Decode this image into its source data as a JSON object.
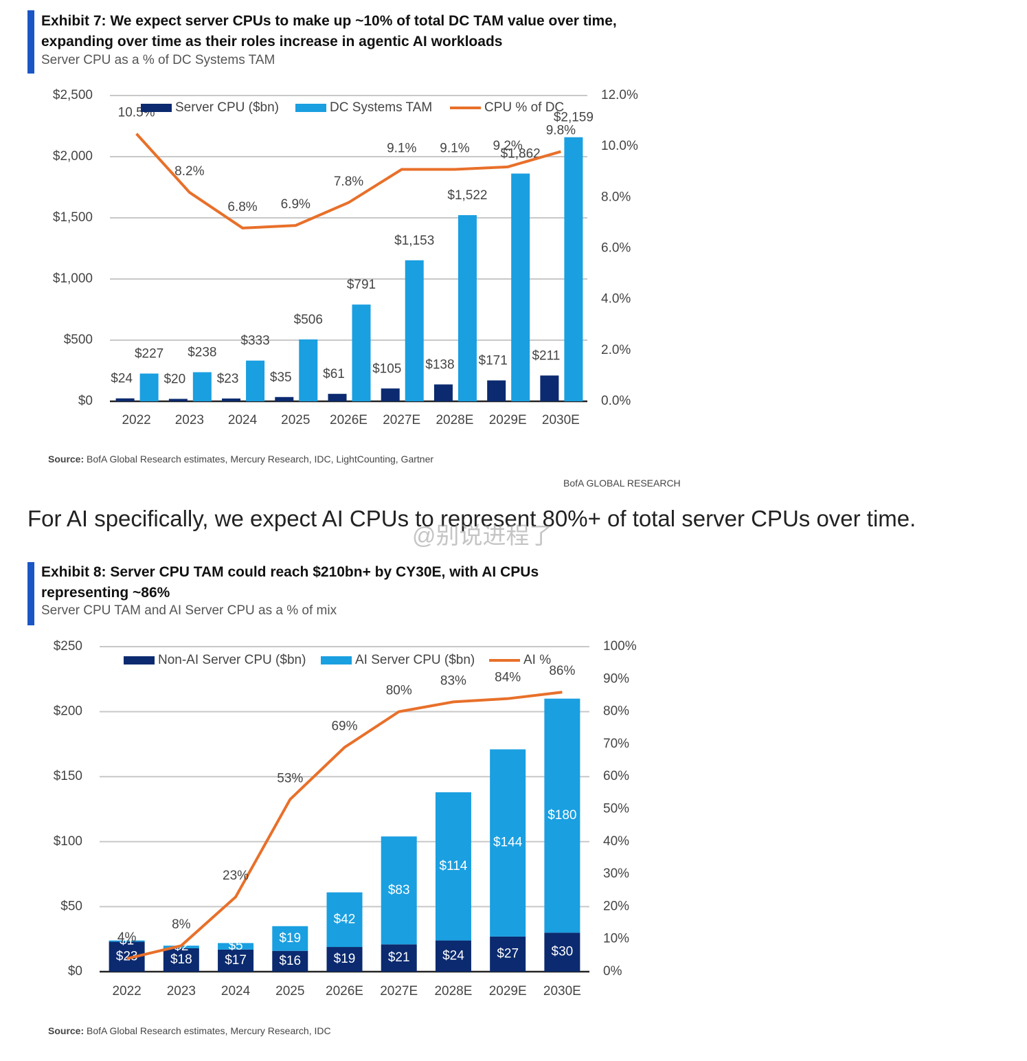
{
  "brand": "BofA GLOBAL RESEARCH",
  "text": "For AI specifically, we expect AI CPUs to represent 80%+ of total server CPUs over time.",
  "watermark": "@别说进程了",
  "chart_data": [
    {
      "type": "bar",
      "stacked": false,
      "title": "Exhibit 7: We expect server CPUs to make up ~10% of total DC TAM value over time, expanding over time as their roles increase in agentic AI workloads",
      "subtitle": "Server CPU as a % of DC Systems TAM",
      "source_label": "Source:",
      "source": "BofA Global Research estimates, Mercury Research, IDC, LightCounting, Gartner",
      "categories": [
        "2022",
        "2023",
        "2024",
        "2025",
        "2026E",
        "2027E",
        "2028E",
        "2029E",
        "2030E"
      ],
      "series": [
        {
          "name": "Server CPU ($bn)",
          "color": "#0b2a6f",
          "values": [
            24,
            20,
            23,
            35,
            61,
            105,
            138,
            171,
            211
          ],
          "value_labels": [
            "$24",
            "$20",
            "$23",
            "$35",
            "$61",
            "$105",
            "$138",
            "$171",
            "$211"
          ]
        },
        {
          "name": "DC Systems TAM",
          "color": "#1a9fe0",
          "values": [
            227,
            238,
            333,
            506,
            791,
            1153,
            1522,
            1862,
            2159
          ],
          "value_labels": [
            "$227",
            "$238",
            "$333",
            "$506",
            "$791",
            "$1,153",
            "$1,522",
            "$1,862",
            "$2,159"
          ]
        },
        {
          "name": "CPU % of DC",
          "color": "#e8702a",
          "axis": "y2",
          "values": [
            10.5,
            8.2,
            6.8,
            6.9,
            7.8,
            9.1,
            9.1,
            9.2,
            9.8
          ],
          "value_labels": [
            "10.5%",
            "8.2%",
            "6.8%",
            "6.9%",
            "7.8%",
            "9.1%",
            "9.1%",
            "9.2%",
            "9.8%"
          ]
        }
      ],
      "ylim": [
        0,
        2500
      ],
      "yticks": [
        {
          "value": 0,
          "label": "$0"
        },
        {
          "value": 500,
          "label": "$500"
        },
        {
          "value": 1000,
          "label": "$1,000"
        },
        {
          "value": 1500,
          "label": "$1,500"
        },
        {
          "value": 2000,
          "label": "$2,000"
        },
        {
          "value": 2500,
          "label": "$2,500"
        }
      ],
      "y2lim": [
        0,
        12
      ],
      "y2ticks": [
        {
          "value": 0,
          "label": "0.0%"
        },
        {
          "value": 2,
          "label": "2.0%"
        },
        {
          "value": 4,
          "label": "4.0%"
        },
        {
          "value": 6,
          "label": "6.0%"
        },
        {
          "value": 8,
          "label": "8.0%"
        },
        {
          "value": 10,
          "label": "10.0%"
        },
        {
          "value": 12,
          "label": "12.0%"
        }
      ],
      "grid": true
    },
    {
      "type": "bar",
      "stacked": true,
      "title": "Exhibit 8: Server CPU TAM could reach $210bn+ by CY30E, with AI CPUs representing ~86%",
      "subtitle": "Server CPU TAM and AI Server CPU as a % of mix",
      "source_label": "Source:",
      "source": "BofA Global Research estimates, Mercury Research, IDC",
      "categories": [
        "2022",
        "2023",
        "2024",
        "2025",
        "2026E",
        "2027E",
        "2028E",
        "2029E",
        "2030E"
      ],
      "series": [
        {
          "name": "Non-AI Server CPU ($bn)",
          "color": "#0b2a6f",
          "values": [
            23,
            18,
            17,
            16,
            19,
            21,
            24,
            27,
            30
          ],
          "value_labels": [
            "$23",
            "$18",
            "$17",
            "$16",
            "$19",
            "$21",
            "$24",
            "$27",
            "$30"
          ]
        },
        {
          "name": "AI Server CPU ($bn)",
          "color": "#1a9fe0",
          "values": [
            1,
            2,
            5,
            19,
            42,
            83,
            114,
            144,
            180
          ],
          "value_labels": [
            "$1",
            "$2",
            "$5",
            "$19",
            "$42",
            "$83",
            "$114",
            "$144",
            "$180"
          ]
        },
        {
          "name": "AI %",
          "color": "#e8702a",
          "axis": "y2",
          "values": [
            4,
            8,
            23,
            53,
            69,
            80,
            83,
            84,
            86
          ],
          "value_labels": [
            "4%",
            "8%",
            "23%",
            "53%",
            "69%",
            "80%",
            "83%",
            "84%",
            "86%"
          ]
        }
      ],
      "ylim": [
        0,
        250
      ],
      "yticks": [
        {
          "value": 0,
          "label": "$0"
        },
        {
          "value": 50,
          "label": "$50"
        },
        {
          "value": 100,
          "label": "$100"
        },
        {
          "value": 150,
          "label": "$150"
        },
        {
          "value": 200,
          "label": "$200"
        },
        {
          "value": 250,
          "label": "$250"
        }
      ],
      "y2lim": [
        0,
        100
      ],
      "y2ticks": [
        {
          "value": 0,
          "label": "0%"
        },
        {
          "value": 10,
          "label": "10%"
        },
        {
          "value": 20,
          "label": "20%"
        },
        {
          "value": 30,
          "label": "30%"
        },
        {
          "value": 40,
          "label": "40%"
        },
        {
          "value": 50,
          "label": "50%"
        },
        {
          "value": 60,
          "label": "60%"
        },
        {
          "value": 70,
          "label": "70%"
        },
        {
          "value": 80,
          "label": "80%"
        },
        {
          "value": 90,
          "label": "90%"
        },
        {
          "value": 100,
          "label": "100%"
        }
      ],
      "grid": true
    }
  ]
}
